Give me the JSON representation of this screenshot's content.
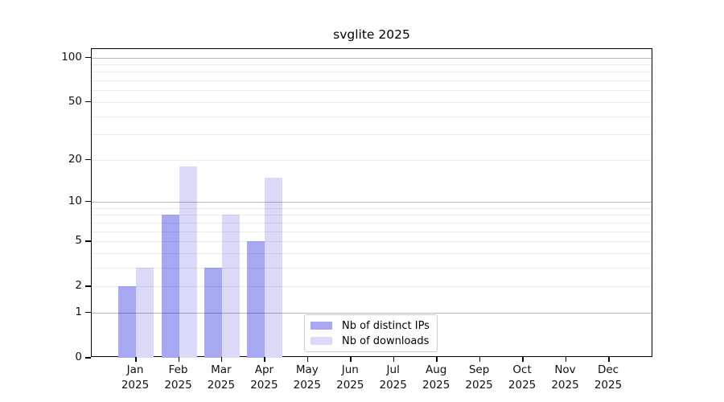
{
  "chart_data": {
    "type": "bar",
    "title": "svglite 2025",
    "categories": [
      "Jan",
      "Feb",
      "Mar",
      "Apr",
      "May",
      "Jun",
      "Jul",
      "Aug",
      "Sep",
      "Oct",
      "Nov",
      "Dec"
    ],
    "category_year": "2025",
    "series": [
      {
        "name": "Nb of distinct IPs",
        "color": "#a8a8f2",
        "values": [
          2,
          8,
          3,
          5,
          0,
          0,
          0,
          0,
          0,
          0,
          0,
          0
        ]
      },
      {
        "name": "Nb of downloads",
        "color": "#dadaf8",
        "values": [
          3,
          18,
          8,
          15,
          0,
          0,
          0,
          0,
          0,
          0,
          0,
          0
        ]
      }
    ],
    "y_axis": {
      "scale": "log1p",
      "tick_values": [
        0,
        1,
        2,
        5,
        10,
        20,
        50,
        100
      ],
      "tick_labels": [
        "0",
        "1",
        "2",
        "5",
        "10",
        "20",
        "50",
        "100"
      ],
      "major_gridlines": [
        1,
        10,
        100
      ],
      "minor_gridlines": [
        2,
        3,
        4,
        5,
        6,
        7,
        8,
        9,
        20,
        30,
        40,
        50,
        60,
        70,
        80,
        90
      ],
      "ylim": [
        0,
        114
      ]
    },
    "legend": {
      "position": "lower center"
    },
    "colors": {
      "major_grid": "rgba(0,0,0,0.28)",
      "minor_grid": "rgba(0,0,0,0.075)",
      "axis": "#000000",
      "background": "#ffffff"
    },
    "grid": true
  }
}
